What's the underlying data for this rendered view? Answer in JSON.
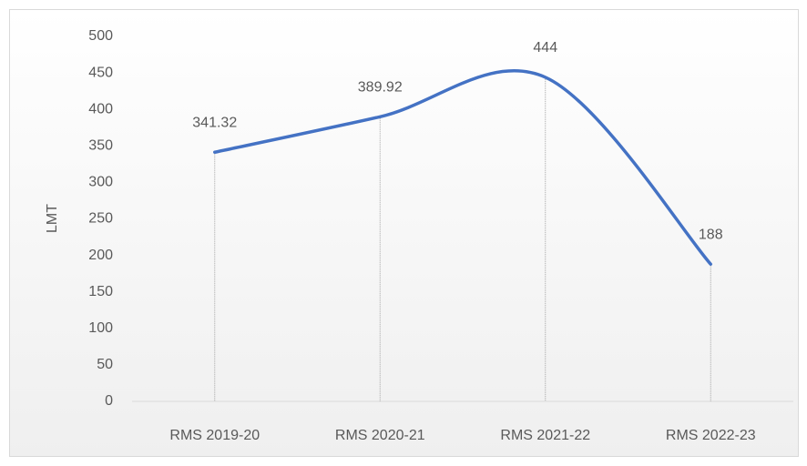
{
  "chart_data": {
    "type": "line",
    "y_label": "LMT",
    "categories": [
      "RMS 2019-20",
      "RMS 2020-21",
      "RMS 2021-22",
      "RMS 2022-23"
    ],
    "values": [
      341.32,
      389.92,
      444,
      188
    ],
    "color": "#4472c4",
    "smooth": true,
    "drop_lines": true,
    "ylim": [
      0,
      500
    ],
    "yticks": [
      0,
      50,
      100,
      150,
      200,
      250,
      300,
      350,
      400,
      450,
      500
    ],
    "grid": false
  }
}
